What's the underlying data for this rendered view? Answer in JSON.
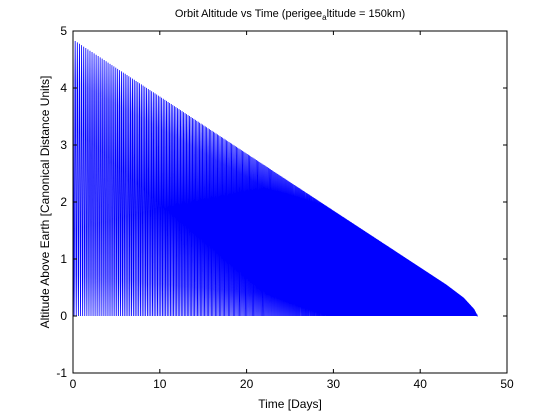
{
  "chart_data": {
    "type": "line",
    "title": "Orbit Altitude vs Time (perigee",
    "title_subscript": "a",
    "title_tail": "ltitude = 150km)",
    "xlabel": "Time [Days]",
    "ylabel": "Altitude Above Earth [Canonical Distance Units]",
    "xlim": [
      0,
      50
    ],
    "ylim": [
      -1,
      5
    ],
    "xticks": [
      0,
      10,
      20,
      30,
      40,
      50
    ],
    "yticks": [
      -1,
      0,
      1,
      2,
      3,
      4,
      5
    ],
    "xtick_labels": [
      "0",
      "10",
      "20",
      "30",
      "40",
      "50"
    ],
    "ytick_labels": [
      "-1",
      "0",
      "1",
      "2",
      "3",
      "4",
      "5"
    ],
    "grid": false,
    "series": [
      {
        "name": "altitude",
        "color": "#0000ff",
        "perigee_altitude": 0.0,
        "envelope_apogee": {
          "t": [
            0,
            5,
            10,
            15,
            20,
            25,
            30,
            35,
            40,
            43,
            45,
            46.2,
            46.6
          ],
          "altitude": [
            4.85,
            4.35,
            3.85,
            3.35,
            2.85,
            2.35,
            1.85,
            1.35,
            0.85,
            0.55,
            0.32,
            0.12,
            0.0
          ]
        },
        "end_time": 46.6
      }
    ]
  },
  "colors": {
    "series": "#0000ff",
    "axes": "#000000",
    "background": "#ffffff"
  }
}
